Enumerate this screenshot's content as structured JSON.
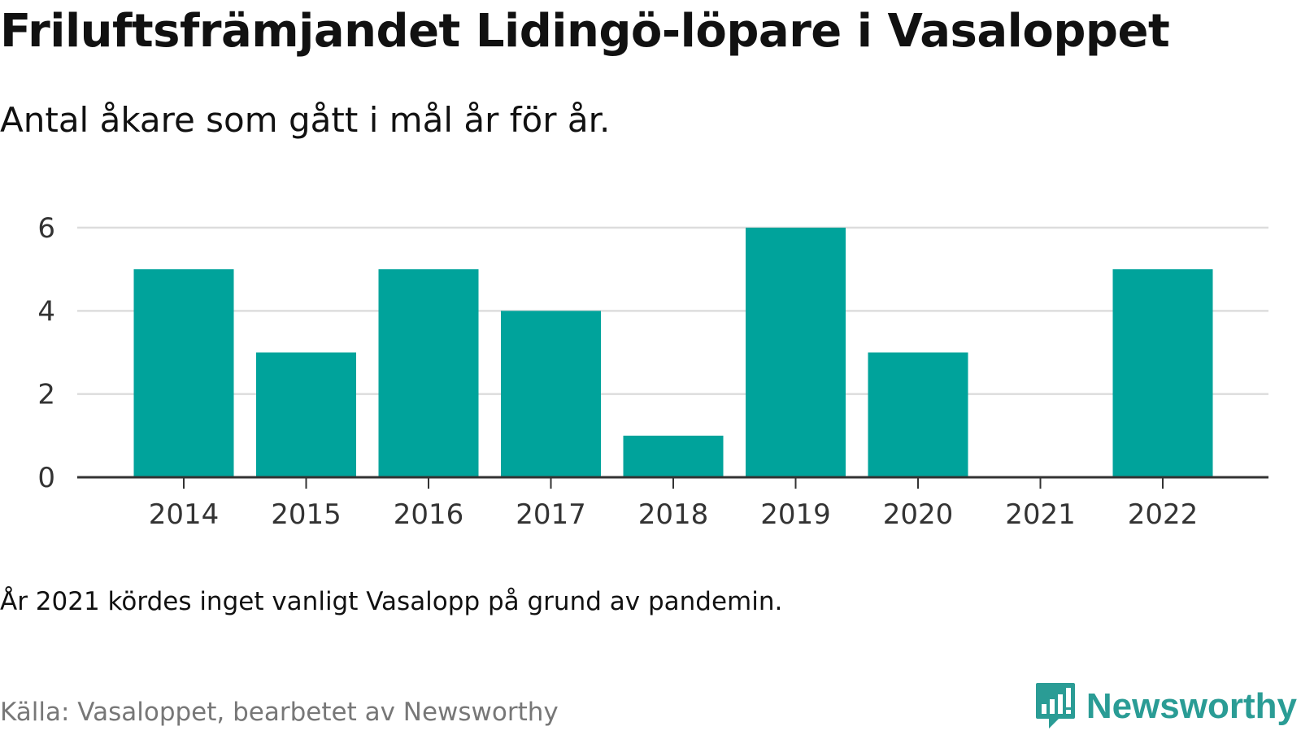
{
  "title": "Friluftsfrämjandet Lidingö-löpare i Vasaloppet",
  "subtitle": "Antal åkare som gått i mål år för år.",
  "note": "År 2021 kördes inget vanligt Vasalopp på grund av pandemin.",
  "source": "Källa: Vasaloppet, bearbetet av Newsworthy",
  "brand": {
    "name": "Newsworthy",
    "icon": "newsworthy-logo-icon"
  },
  "colors": {
    "bar": "#00a39b",
    "grid": "#dddddd",
    "axis": "#333333",
    "brand": "#2a9c95"
  },
  "chart_data": {
    "type": "bar",
    "title": "Friluftsfrämjandet Lidingö-löpare i Vasaloppet",
    "subtitle": "Antal åkare som gått i mål år för år.",
    "xlabel": "",
    "ylabel": "",
    "categories": [
      "2014",
      "2015",
      "2016",
      "2017",
      "2018",
      "2019",
      "2020",
      "2021",
      "2022"
    ],
    "values": [
      5,
      3,
      5,
      4,
      1,
      6,
      3,
      0,
      5
    ],
    "ylim": [
      0,
      6
    ],
    "yticks": [
      0,
      2,
      4,
      6
    ],
    "grid": true,
    "legend": "none"
  }
}
